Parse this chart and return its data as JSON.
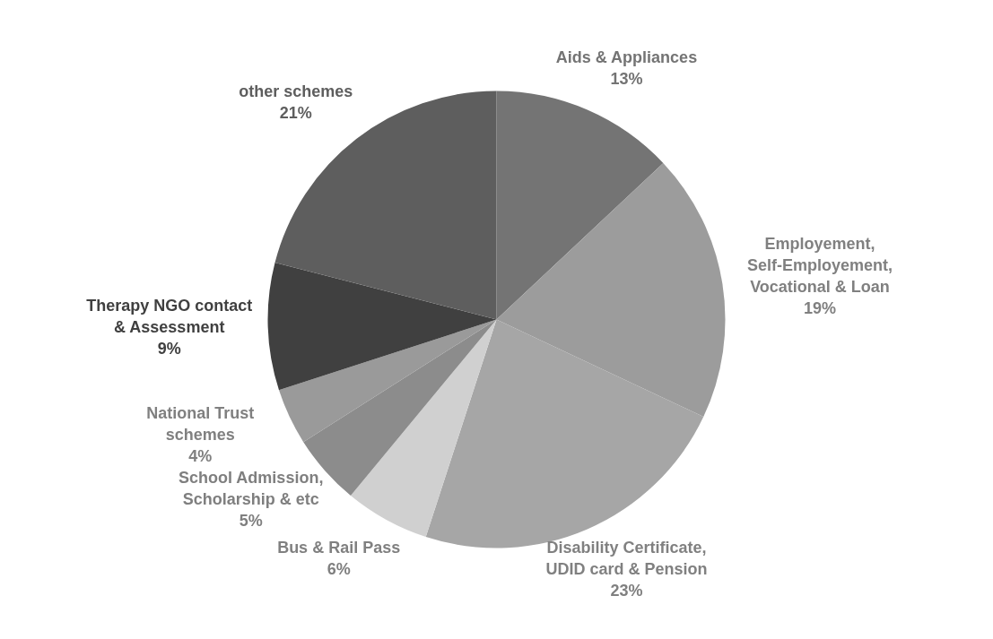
{
  "chart_data": {
    "type": "pie",
    "categories": [
      "Aids & Appliances",
      "Employement, Self-Employement, Vocational & Loan",
      "Disability Certificate, UDID card & Pension",
      "Bus & Rail Pass",
      "School Admission, Scholarship & etc",
      "National Trust schemes",
      "Therapy NGO contact & Assessment",
      "other schemes"
    ],
    "values": [
      13,
      19,
      23,
      6,
      5,
      4,
      9,
      21
    ],
    "colors": [
      "#747474",
      "#9c9c9c",
      "#a6a6a6",
      "#d0d0d0",
      "#8c8c8c",
      "#9a9a9a",
      "#404040",
      "#5e5e5e"
    ],
    "value_labels": [
      "13%",
      "19%",
      "23%",
      "6%",
      "5%",
      "4%",
      "9%",
      "21%"
    ],
    "legend": false
  }
}
